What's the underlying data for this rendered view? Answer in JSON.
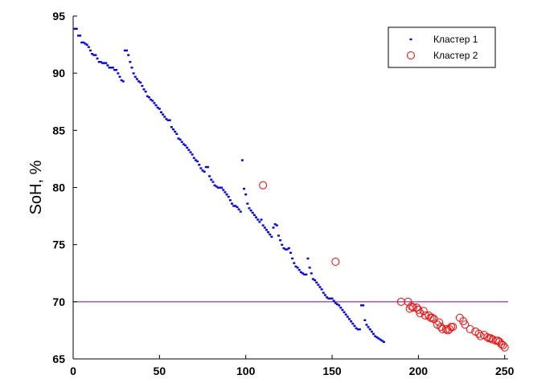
{
  "chart_data": {
    "type": "scatter",
    "title": "",
    "xlabel": "",
    "ylabel": "SoH, %",
    "xlim": [
      0,
      252
    ],
    "ylim": [
      65,
      95
    ],
    "xticks": [
      0,
      50,
      100,
      150,
      200,
      250
    ],
    "yticks": [
      65,
      70,
      75,
      80,
      85,
      90,
      95
    ],
    "grid": false,
    "legend_position": "top-right",
    "threshold_line": {
      "y": 70,
      "color": "#800080"
    },
    "series": [
      {
        "name": "Кластер 1",
        "marker": "dot",
        "color": "#0000ff",
        "points": [
          [
            1,
            93.9
          ],
          [
            2,
            93.9
          ],
          [
            3,
            93.3
          ],
          [
            4,
            93.3
          ],
          [
            5,
            92.7
          ],
          [
            6,
            92.7
          ],
          [
            7,
            92.6
          ],
          [
            8,
            92.5
          ],
          [
            9,
            92.3
          ],
          [
            10,
            92.0
          ],
          [
            11,
            91.7
          ],
          [
            12,
            91.6
          ],
          [
            13,
            91.6
          ],
          [
            14,
            91.3
          ],
          [
            15,
            91.0
          ],
          [
            16,
            91.0
          ],
          [
            17,
            90.9
          ],
          [
            18,
            90.9
          ],
          [
            19,
            90.9
          ],
          [
            20,
            90.7
          ],
          [
            21,
            90.5
          ],
          [
            22,
            90.5
          ],
          [
            23,
            90.5
          ],
          [
            24,
            90.3
          ],
          [
            25,
            90.3
          ],
          [
            26,
            90.0
          ],
          [
            27,
            89.7
          ],
          [
            28,
            89.4
          ],
          [
            29,
            89.3
          ],
          [
            30,
            92.0
          ],
          [
            31,
            92.0
          ],
          [
            32,
            91.6
          ],
          [
            33,
            91.0
          ],
          [
            34,
            90.5
          ],
          [
            35,
            90.0
          ],
          [
            36,
            89.7
          ],
          [
            37,
            89.5
          ],
          [
            38,
            89.3
          ],
          [
            39,
            89.2
          ],
          [
            40,
            88.9
          ],
          [
            41,
            88.6
          ],
          [
            42,
            88.4
          ],
          [
            43,
            88.0
          ],
          [
            44,
            87.9
          ],
          [
            45,
            87.7
          ],
          [
            46,
            87.6
          ],
          [
            47,
            87.4
          ],
          [
            48,
            87.2
          ],
          [
            49,
            87.0
          ],
          [
            50,
            86.9
          ],
          [
            51,
            86.6
          ],
          [
            52,
            86.4
          ],
          [
            53,
            86.2
          ],
          [
            54,
            86.0
          ],
          [
            55,
            85.9
          ],
          [
            56,
            85.9
          ],
          [
            57,
            85.3
          ],
          [
            58,
            85.1
          ],
          [
            59,
            84.9
          ],
          [
            60,
            84.7
          ],
          [
            61,
            84.3
          ],
          [
            62,
            84.2
          ],
          [
            63,
            84.0
          ],
          [
            64,
            83.8
          ],
          [
            65,
            83.7
          ],
          [
            66,
            83.5
          ],
          [
            67,
            83.3
          ],
          [
            68,
            83.1
          ],
          [
            69,
            82.9
          ],
          [
            70,
            82.6
          ],
          [
            71,
            82.4
          ],
          [
            72,
            82.3
          ],
          [
            73,
            82.0
          ],
          [
            74,
            81.7
          ],
          [
            75,
            81.5
          ],
          [
            76,
            81.4
          ],
          [
            77,
            81.8
          ],
          [
            78,
            81.8
          ],
          [
            79,
            81.0
          ],
          [
            80,
            80.7
          ],
          [
            81,
            80.5
          ],
          [
            82,
            80.2
          ],
          [
            83,
            80.1
          ],
          [
            84,
            80.0
          ],
          [
            85,
            80.0
          ],
          [
            86,
            80.0
          ],
          [
            87,
            79.8
          ],
          [
            88,
            79.6
          ],
          [
            89,
            79.4
          ],
          [
            90,
            79.2
          ],
          [
            91,
            78.9
          ],
          [
            92,
            78.6
          ],
          [
            93,
            78.4
          ],
          [
            94,
            78.4
          ],
          [
            95,
            78.3
          ],
          [
            96,
            78.1
          ],
          [
            97,
            77.9
          ],
          [
            98,
            82.4
          ],
          [
            99,
            79.9
          ],
          [
            100,
            79.4
          ],
          [
            101,
            78.6
          ],
          [
            102,
            78.2
          ],
          [
            103,
            78.0
          ],
          [
            104,
            77.8
          ],
          [
            105,
            77.6
          ],
          [
            106,
            77.4
          ],
          [
            107,
            77.2
          ],
          [
            108,
            77.0
          ],
          [
            109,
            77.2
          ],
          [
            110,
            76.7
          ],
          [
            111,
            76.5
          ],
          [
            112,
            76.3
          ],
          [
            113,
            76.1
          ],
          [
            114,
            75.9
          ],
          [
            115,
            75.7
          ],
          [
            116,
            76.5
          ],
          [
            117,
            76.8
          ],
          [
            118,
            76.7
          ],
          [
            119,
            75.8
          ],
          [
            120,
            75.4
          ],
          [
            121,
            75.0
          ],
          [
            122,
            74.7
          ],
          [
            123,
            74.6
          ],
          [
            124,
            74.6
          ],
          [
            125,
            74.7
          ],
          [
            126,
            74.3
          ],
          [
            127,
            73.8
          ],
          [
            128,
            73.4
          ],
          [
            129,
            73.1
          ],
          [
            130,
            73.0
          ],
          [
            131,
            72.8
          ],
          [
            132,
            72.6
          ],
          [
            133,
            72.5
          ],
          [
            134,
            72.4
          ],
          [
            135,
            72.4
          ],
          [
            136,
            73.8
          ],
          [
            137,
            73.0
          ],
          [
            138,
            72.5
          ],
          [
            139,
            72.0
          ],
          [
            140,
            71.9
          ],
          [
            141,
            71.7
          ],
          [
            142,
            71.5
          ],
          [
            143,
            71.3
          ],
          [
            144,
            71.1
          ],
          [
            145,
            70.8
          ],
          [
            146,
            70.6
          ],
          [
            147,
            70.4
          ],
          [
            148,
            70.3
          ],
          [
            149,
            70.3
          ],
          [
            150,
            70.3
          ],
          [
            151,
            70.1
          ],
          [
            152,
            69.9
          ],
          [
            153,
            69.8
          ],
          [
            154,
            69.7
          ],
          [
            155,
            69.5
          ],
          [
            156,
            69.3
          ],
          [
            157,
            69.1
          ],
          [
            158,
            68.9
          ],
          [
            159,
            68.7
          ],
          [
            160,
            68.5
          ],
          [
            161,
            68.3
          ],
          [
            162,
            68.1
          ],
          [
            163,
            67.9
          ],
          [
            164,
            67.7
          ],
          [
            165,
            67.6
          ],
          [
            166,
            67.6
          ],
          [
            167,
            69.7
          ],
          [
            168,
            69.7
          ],
          [
            169,
            68.4
          ],
          [
            170,
            68.0
          ],
          [
            171,
            67.8
          ],
          [
            172,
            67.6
          ],
          [
            173,
            67.4
          ],
          [
            174,
            67.2
          ],
          [
            175,
            67.0
          ],
          [
            176,
            66.9
          ],
          [
            177,
            66.8
          ],
          [
            178,
            66.7
          ],
          [
            179,
            66.6
          ],
          [
            180,
            66.5
          ]
        ]
      },
      {
        "name": "Кластер 2",
        "marker": "circle",
        "color": "#ff0000",
        "points": [
          [
            110,
            80.2
          ],
          [
            152,
            73.5
          ],
          [
            190,
            70.0
          ],
          [
            194,
            70.0
          ],
          [
            195,
            69.4
          ],
          [
            196,
            69.6
          ],
          [
            197,
            69.5
          ],
          [
            199,
            69.5
          ],
          [
            200,
            69.3
          ],
          [
            201,
            69.0
          ],
          [
            203,
            69.2
          ],
          [
            204,
            68.8
          ],
          [
            206,
            68.8
          ],
          [
            207,
            68.6
          ],
          [
            208,
            68.6
          ],
          [
            209,
            68.5
          ],
          [
            211,
            68.0
          ],
          [
            212,
            68.2
          ],
          [
            213,
            67.8
          ],
          [
            214,
            67.6
          ],
          [
            216,
            67.6
          ],
          [
            217,
            67.5
          ],
          [
            218,
            67.6
          ],
          [
            219,
            67.8
          ],
          [
            220,
            67.8
          ],
          [
            224,
            68.6
          ],
          [
            226,
            68.3
          ],
          [
            227,
            68.0
          ],
          [
            230,
            67.6
          ],
          [
            233,
            67.4
          ],
          [
            235,
            67.2
          ],
          [
            236,
            67.0
          ],
          [
            238,
            67.1
          ],
          [
            240,
            66.9
          ],
          [
            241,
            66.8
          ],
          [
            242,
            66.8
          ],
          [
            243,
            66.7
          ],
          [
            245,
            66.6
          ],
          [
            246,
            66.6
          ],
          [
            247,
            66.5
          ],
          [
            248,
            66.3
          ],
          [
            249,
            66.2
          ],
          [
            250,
            66.0
          ]
        ]
      }
    ]
  }
}
